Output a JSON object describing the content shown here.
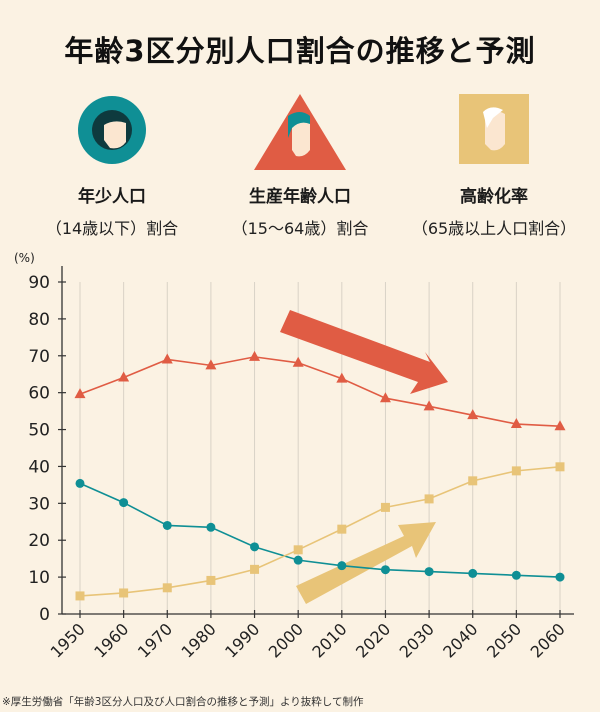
{
  "title": "年齢3区分別人口割合の推移と予測",
  "legend": [
    {
      "line1": "年少人口",
      "line2": "（14歳以下）割合",
      "icon": "circle-child-icon",
      "color": "#0f8f95"
    },
    {
      "line1": "生産年齢人口",
      "line2": "（15〜64歳）割合",
      "icon": "triangle-adult-icon",
      "color": "#e05c44"
    },
    {
      "line1": "高齢化率",
      "line2": "（65歳以上人口割合）",
      "icon": "square-elderly-icon",
      "color": "#e8c478"
    }
  ],
  "chart_data": {
    "type": "line",
    "ylabel": "(%)",
    "ylim": [
      0,
      90
    ],
    "yticks": [
      0,
      10,
      20,
      30,
      40,
      50,
      60,
      70,
      80,
      90
    ],
    "x": [
      "1950",
      "1960",
      "1970",
      "1980",
      "1990",
      "2000",
      "2010",
      "2020",
      "2030",
      "2040",
      "2050",
      "2060"
    ],
    "series": [
      {
        "key": "working",
        "color": "#e05c44",
        "marker": "triangle",
        "values": [
          59.6,
          64.1,
          69.0,
          67.4,
          69.7,
          68.1,
          63.8,
          58.5,
          56.3,
          53.9,
          51.5,
          50.9
        ]
      },
      {
        "key": "youth",
        "color": "#0f8f95",
        "marker": "circle",
        "values": [
          35.4,
          30.2,
          24.0,
          23.5,
          18.2,
          14.6,
          13.1,
          12.0,
          11.5,
          11.0,
          10.5,
          10.0
        ]
      },
      {
        "key": "elderly",
        "color": "#e8c478",
        "marker": "square",
        "values": [
          4.9,
          5.7,
          7.1,
          9.1,
          12.1,
          17.4,
          23.0,
          28.9,
          31.2,
          36.1,
          38.8,
          39.9
        ]
      }
    ],
    "arrows": [
      {
        "key": "working-trend-arrow",
        "color": "#e05c44"
      },
      {
        "key": "elderly-trend-arrow",
        "color": "#e8c478"
      }
    ]
  },
  "source": "※厚生労働省「年齢3区分人口及び人口割合の推移と予測」より抜粋して制作"
}
